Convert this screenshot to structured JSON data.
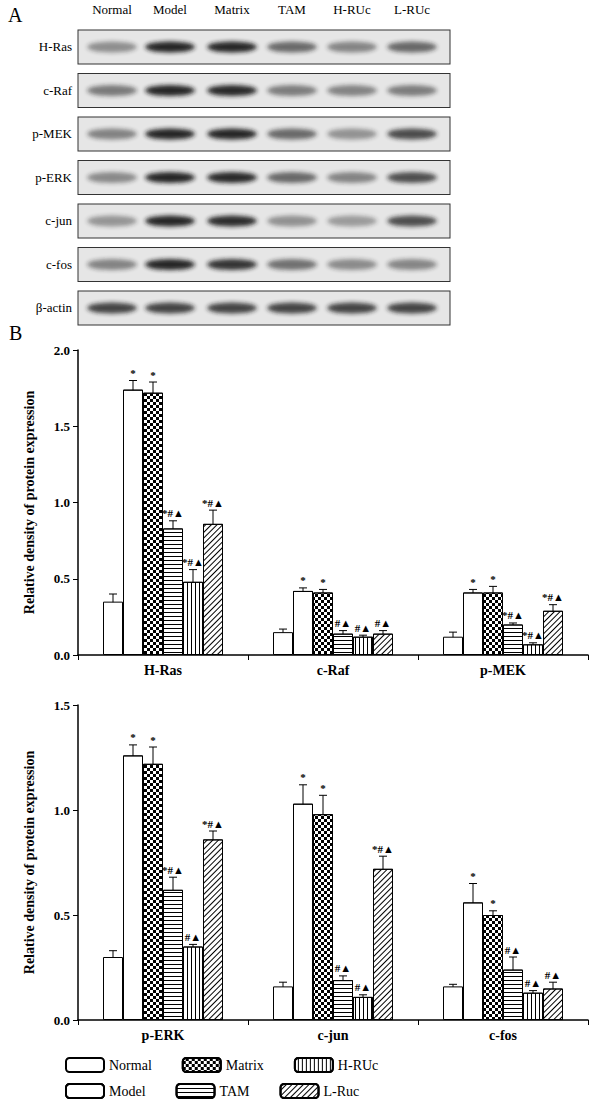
{
  "panel_labels": [
    "A",
    "B"
  ],
  "blot": {
    "lanes": [
      "Normal",
      "Model",
      "Matrix",
      "TAM",
      "H-RUc",
      "L-RUc"
    ],
    "proteins": [
      "H-Ras",
      "c-Raf",
      "p-MEK",
      "p-ERK",
      "c-jun",
      "c-fos",
      "β-actin"
    ]
  },
  "chart_data": [
    {
      "type": "bar",
      "y_label": "Relative density of protein expression",
      "categories": [
        "H-Ras",
        "c-Raf",
        "p-MEK"
      ],
      "ylim": [
        0,
        2
      ],
      "yticks": [
        {
          "value": 0,
          "label": "0.0"
        },
        {
          "value": 0.5,
          "label": "0.5"
        },
        {
          "value": 1,
          "label": "1.0"
        },
        {
          "value": 1.5,
          "label": "1.5"
        },
        {
          "value": 2,
          "label": "2.0"
        }
      ],
      "grid": false,
      "series": [
        {
          "name": "Normal",
          "color": "#ffffff",
          "values": [
            0.35,
            0.15,
            0.12
          ],
          "errors": [
            0.05,
            0.02,
            0.03
          ],
          "annotations": [
            null,
            null,
            null
          ]
        },
        {
          "name": "Model",
          "color": "#ffffff",
          "values": [
            1.74,
            0.42,
            0.41
          ],
          "errors": [
            0.06,
            0.02,
            0.02
          ],
          "annotations": [
            "*",
            "*",
            "*"
          ]
        },
        {
          "name": "Matrix",
          "color": "#ffffff",
          "values": [
            1.72,
            0.41,
            0.41
          ],
          "errors": [
            0.07,
            0.02,
            0.04
          ],
          "annotations": [
            "*",
            "*",
            "*"
          ]
        },
        {
          "name": "TAM",
          "color": "#ffffff",
          "values": [
            0.83,
            0.14,
            0.2
          ],
          "errors": [
            0.05,
            0.02,
            0.01
          ],
          "annotations": [
            "*#▲",
            "#▲",
            "*#▲"
          ]
        },
        {
          "name": "H-RUc",
          "color": "#ffffff",
          "values": [
            0.48,
            0.12,
            0.07
          ],
          "errors": [
            0.08,
            0.01,
            0.01
          ],
          "annotations": [
            "*#▲",
            "#▲",
            "*#▲"
          ]
        },
        {
          "name": "L-Ruc",
          "color": "#ffffff",
          "values": [
            0.86,
            0.14,
            0.29
          ],
          "errors": [
            0.09,
            0.02,
            0.04
          ],
          "annotations": [
            "*#▲",
            "#▲",
            "*#▲"
          ]
        }
      ]
    },
    {
      "type": "bar",
      "y_label": "Relative density of protein expression",
      "categories": [
        "p-ERK",
        "c-jun",
        "c-fos"
      ],
      "ylim": [
        0,
        1.5
      ],
      "yticks": [
        {
          "value": 0,
          "label": "0.0"
        },
        {
          "value": 0.5,
          "label": "0.5"
        },
        {
          "value": 1,
          "label": "1.0"
        },
        {
          "value": 1.5,
          "label": "1.5"
        }
      ],
      "grid": false,
      "legend": "bottom",
      "series": [
        {
          "name": "Normal",
          "color": "#ffffff",
          "values": [
            0.3,
            0.16,
            0.16
          ],
          "errors": [
            0.03,
            0.02,
            0.01
          ],
          "annotations": [
            null,
            null,
            null
          ]
        },
        {
          "name": "Model",
          "color": "#ffffff",
          "values": [
            1.26,
            1.03,
            0.56
          ],
          "errors": [
            0.05,
            0.09,
            0.09
          ],
          "annotations": [
            "*",
            "*",
            "*"
          ]
        },
        {
          "name": "Matrix",
          "color": "#ffffff",
          "values": [
            1.22,
            0.98,
            0.5
          ],
          "errors": [
            0.08,
            0.09,
            0.02
          ],
          "annotations": [
            "*",
            "*",
            "*"
          ]
        },
        {
          "name": "TAM",
          "color": "#ffffff",
          "values": [
            0.62,
            0.19,
            0.24
          ],
          "errors": [
            0.06,
            0.02,
            0.06
          ],
          "annotations": [
            "*#▲",
            "#▲",
            "#▲"
          ]
        },
        {
          "name": "H-RUc",
          "color": "#ffffff",
          "values": [
            0.35,
            0.11,
            0.13
          ],
          "errors": [
            0.01,
            0.01,
            0.01
          ],
          "annotations": [
            "#▲",
            "#▲",
            "#▲"
          ]
        },
        {
          "name": "L-Ruc",
          "color": "#ffffff",
          "values": [
            0.86,
            0.72,
            0.15
          ],
          "errors": [
            0.04,
            0.06,
            0.03
          ],
          "annotations": [
            "*#▲",
            "*#▲",
            "#▲"
          ]
        }
      ]
    }
  ]
}
